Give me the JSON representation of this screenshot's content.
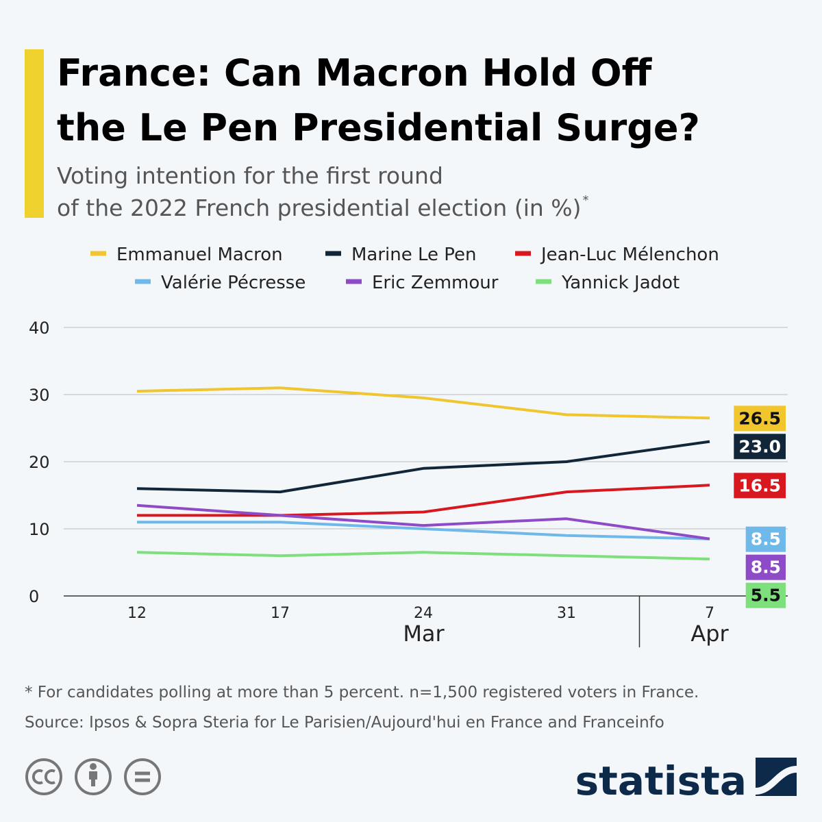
{
  "chart_data": {
    "type": "line",
    "title": [
      "France: Can Macron Hold Off",
      "the Le Pen Presidential Surge?"
    ],
    "subtitle": [
      "Voting intention for the first round",
      "of the 2022 French presidential election (in %)"
    ],
    "subtitle_mark": "*",
    "categories": [
      "12",
      "17",
      "24",
      "31",
      "7"
    ],
    "months": [
      "Mar",
      "Mar",
      "Mar",
      "Mar",
      "Apr"
    ],
    "series": [
      {
        "name": "Emmanuel Macron",
        "color": "#f0c52e",
        "label_text_color": "#111111",
        "values": [
          30.5,
          31,
          29.5,
          27,
          26.5
        ],
        "value_labels": [
          null,
          null,
          null,
          null,
          "26.5"
        ]
      },
      {
        "name": "Marine Le Pen",
        "color": "#12263a",
        "label_text_color": "#ffffff",
        "values": [
          16,
          15.5,
          19,
          20,
          23
        ],
        "value_labels": [
          null,
          null,
          null,
          null,
          "23.0"
        ]
      },
      {
        "name": "Jean-Luc Mélenchon",
        "color": "#d7191f",
        "label_text_color": "#ffffff",
        "values": [
          12,
          12,
          12.5,
          15.5,
          16.5
        ],
        "value_labels": [
          null,
          null,
          null,
          null,
          "16.5"
        ]
      },
      {
        "name": "Valérie Pécresse",
        "color": "#6fb8ea",
        "label_text_color": "#ffffff",
        "values": [
          11,
          11,
          10,
          9,
          8.5
        ],
        "value_labels": [
          null,
          null,
          null,
          null,
          "8.5"
        ]
      },
      {
        "name": "Eric Zemmour",
        "color": "#8e4bc7",
        "label_text_color": "#ffffff",
        "values": [
          13.5,
          12,
          10.5,
          11.5,
          8.5
        ],
        "value_labels": [
          null,
          null,
          null,
          null,
          "8.5"
        ]
      },
      {
        "name": "Yannick Jadot",
        "color": "#7ee07c",
        "label_text_color": "#111111",
        "values": [
          6.5,
          6,
          6.5,
          6,
          5.5
        ],
        "value_labels": [
          null,
          null,
          null,
          null,
          "5.5"
        ]
      }
    ],
    "ylim": [
      0,
      40
    ],
    "yticks": [
      0,
      10,
      20,
      30,
      40
    ],
    "grid": true,
    "note": "* For candidates polling at more than 5 percent. n=1,500 registered voters in France.",
    "source": "Source: Ipsos & Sopra Steria for Le Parisien/Aujourd'hui en France and Franceinfo",
    "brand": "statista"
  }
}
